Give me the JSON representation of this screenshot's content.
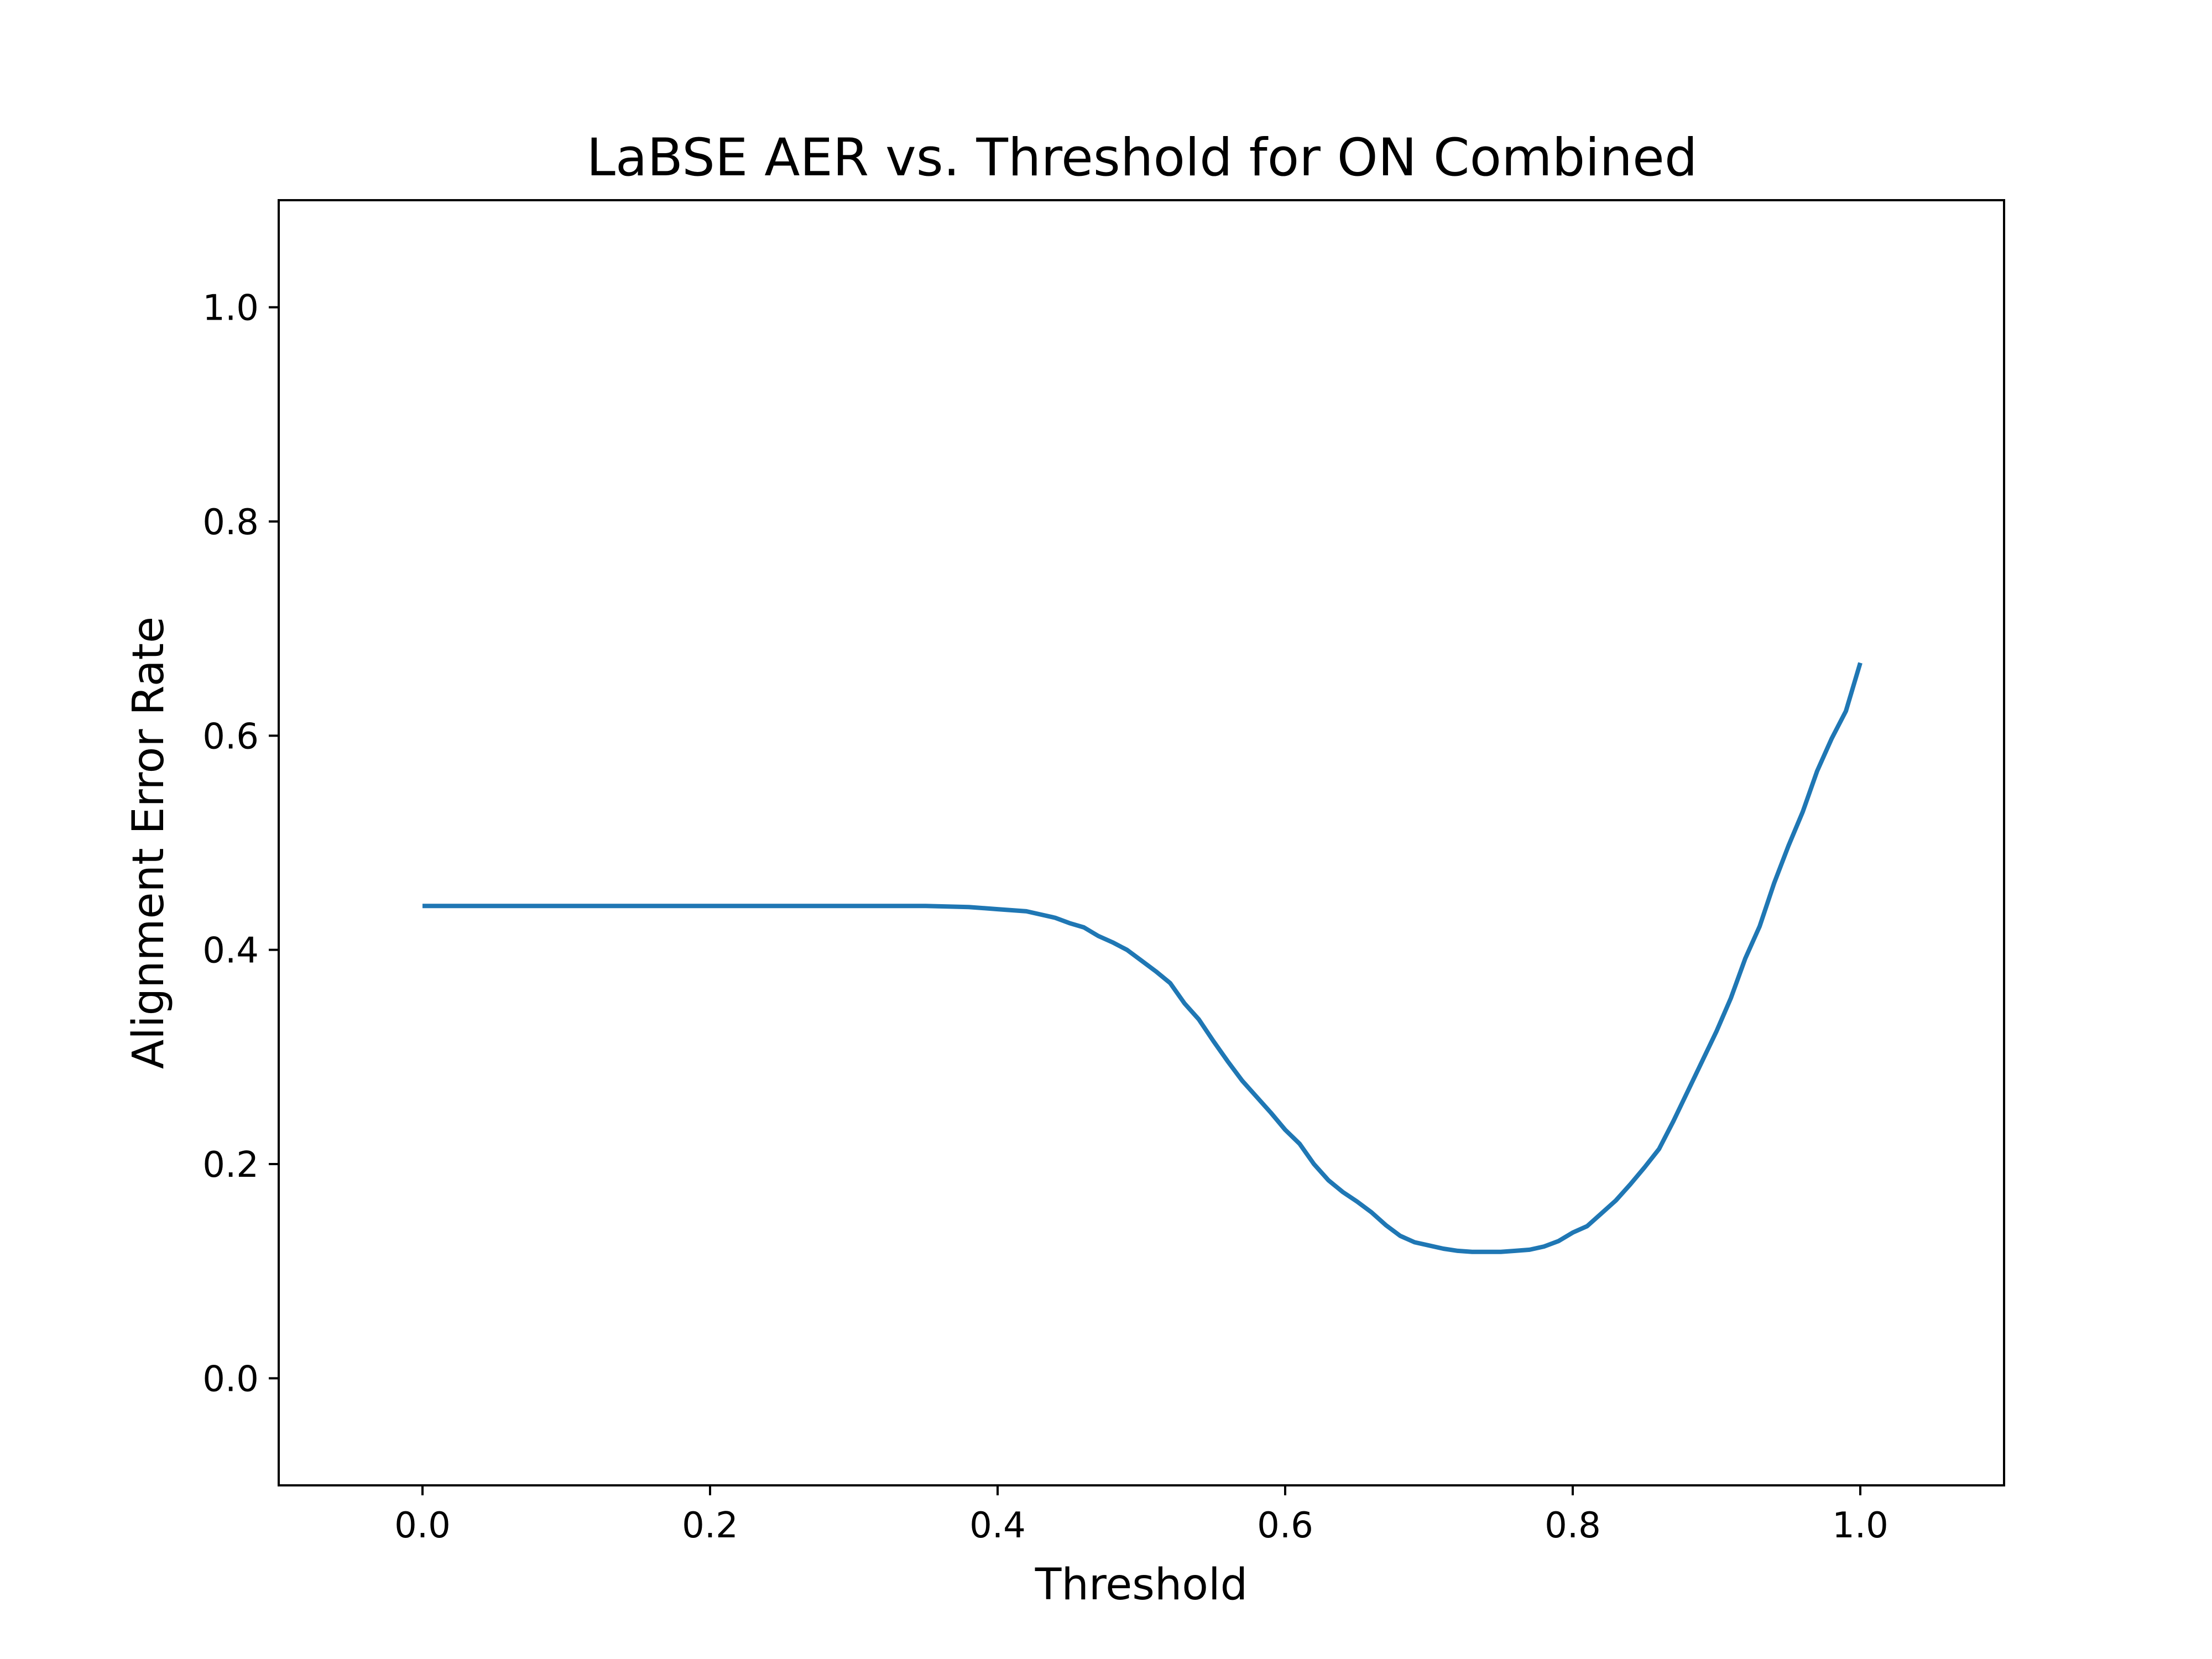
{
  "chart_data": {
    "type": "line",
    "title": "LaBSE AER vs. Threshold for ON Combined",
    "xlabel": "Threshold",
    "ylabel": "Alignment Error Rate",
    "xlim": [
      -0.1,
      1.1
    ],
    "ylim": [
      -0.1,
      1.1
    ],
    "xticks": [
      0.0,
      0.2,
      0.4,
      0.6,
      0.8,
      1.0
    ],
    "xtick_labels": [
      "0.0",
      "0.2",
      "0.4",
      "0.6",
      "0.8",
      "1.0"
    ],
    "yticks": [
      0.0,
      0.2,
      0.4,
      0.6,
      0.8,
      1.0
    ],
    "ytick_labels": [
      "0.0",
      "0.2",
      "0.4",
      "0.6",
      "0.8",
      "1.0"
    ],
    "grid": false,
    "line_color": "#1f77b4",
    "series": [
      {
        "x": [
          0.0,
          0.05,
          0.1,
          0.15,
          0.2,
          0.25,
          0.3,
          0.35,
          0.38,
          0.4,
          0.42,
          0.44,
          0.45,
          0.46,
          0.47,
          0.48,
          0.49,
          0.5,
          0.51,
          0.52,
          0.53,
          0.54,
          0.55,
          0.56,
          0.57,
          0.58,
          0.59,
          0.6,
          0.61,
          0.62,
          0.63,
          0.64,
          0.65,
          0.66,
          0.67,
          0.68,
          0.69,
          0.7,
          0.71,
          0.72,
          0.73,
          0.74,
          0.75,
          0.76,
          0.77,
          0.78,
          0.79,
          0.8,
          0.81,
          0.82,
          0.83,
          0.84,
          0.85,
          0.86,
          0.87,
          0.88,
          0.89,
          0.9,
          0.91,
          0.92,
          0.93,
          0.94,
          0.95,
          0.96,
          0.97,
          0.98,
          0.99,
          1.0
        ],
        "y": [
          0.441,
          0.441,
          0.441,
          0.441,
          0.441,
          0.441,
          0.441,
          0.441,
          0.44,
          0.438,
          0.436,
          0.43,
          0.425,
          0.421,
          0.413,
          0.407,
          0.4,
          0.39,
          0.38,
          0.369,
          0.35,
          0.335,
          0.315,
          0.296,
          0.278,
          0.263,
          0.248,
          0.232,
          0.219,
          0.2,
          0.185,
          0.174,
          0.165,
          0.155,
          0.143,
          0.133,
          0.127,
          0.124,
          0.121,
          0.119,
          0.118,
          0.118,
          0.118,
          0.119,
          0.12,
          0.123,
          0.128,
          0.136,
          0.142,
          0.154,
          0.166,
          0.181,
          0.197,
          0.214,
          0.24,
          0.268,
          0.296,
          0.324,
          0.355,
          0.392,
          0.422,
          0.462,
          0.497,
          0.529,
          0.567,
          0.597,
          0.623,
          0.668
        ]
      }
    ]
  }
}
